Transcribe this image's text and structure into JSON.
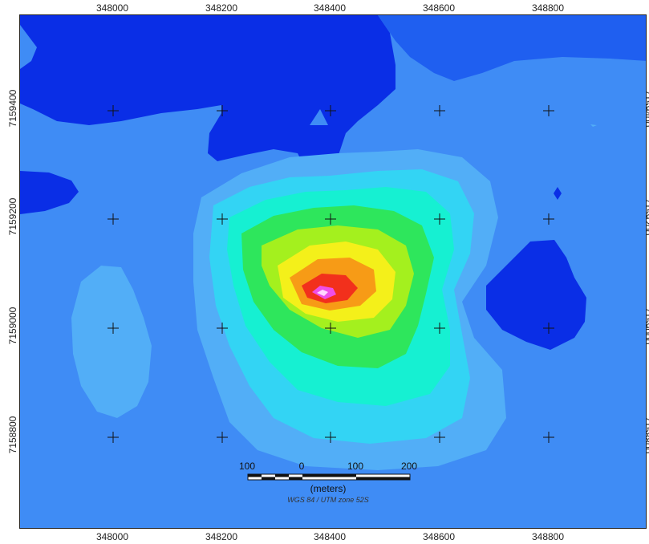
{
  "map": {
    "x_ticks": [
      "348000",
      "348200",
      "348400",
      "348600",
      "348800"
    ],
    "y_ticks": [
      "7159400",
      "7159200",
      "7159000",
      "7158800"
    ],
    "scale_bar": {
      "labels": [
        "100",
        "0",
        "100",
        "200"
      ],
      "units": "(meters)",
      "projection": "WGS 84 / UTM zone 52S"
    },
    "colors": {
      "deep_blue": "#0a2ee6",
      "blue": "#1f5ff0",
      "mid_blue": "#3f8cf5",
      "light_blue": "#52aef7",
      "cyan": "#33d4f4",
      "aqua": "#16f0d2",
      "green": "#2ee65c",
      "yellow_green": "#a4f01e",
      "yellow": "#f4f01a",
      "orange": "#f79b16",
      "red": "#f2301c",
      "magenta": "#f04ee8"
    }
  }
}
